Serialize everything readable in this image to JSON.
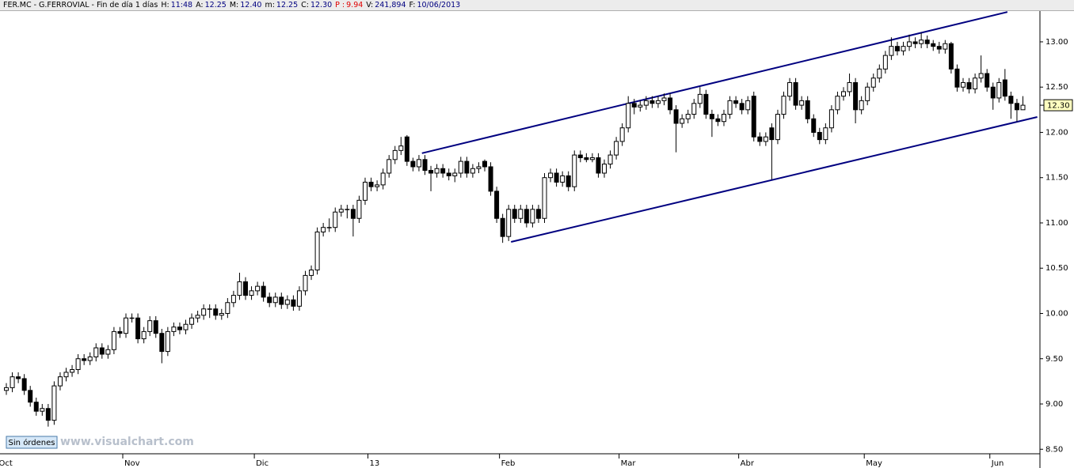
{
  "chart_data": {
    "type": "candlestick",
    "header": {
      "symbol": "FER.MC - G.FERROVIAL - Fin de día 1 días",
      "fields": [
        {
          "label": "H:",
          "value": "11:48",
          "color": "#000080"
        },
        {
          "label": "A:",
          "value": "12.25",
          "color": "#000080"
        },
        {
          "label": "M:",
          "value": "12.40",
          "color": "#000080"
        },
        {
          "label": "m:",
          "value": "12.25",
          "color": "#000080"
        },
        {
          "label": "C:",
          "value": "12.30",
          "color": "#000080"
        },
        {
          "label": "P :",
          "value": "9.94",
          "color": "#e00000"
        },
        {
          "label": "V:",
          "value": "241,894",
          "color": "#000080"
        },
        {
          "label": "F:",
          "value": "10/06/2013",
          "color": "#000080"
        }
      ]
    },
    "button": "Sin órdenes",
    "watermark": "www.visualchart.com",
    "last_label": "12.30",
    "ylim": [
      8.45,
      13.34
    ],
    "yticks": [
      {
        "value": 8.5,
        "label": "8.50"
      },
      {
        "value": 9,
        "label": "9.00"
      },
      {
        "value": 9.5,
        "label": "9.50"
      },
      {
        "value": 10,
        "label": "10.00"
      },
      {
        "value": 10.5,
        "label": "10.50"
      },
      {
        "value": 11,
        "label": "11.00"
      },
      {
        "value": 11.5,
        "label": "11.50"
      },
      {
        "value": 12,
        "label": "12.00"
      },
      {
        "value": 12.5,
        "label": "12.50"
      },
      {
        "value": 13,
        "label": "13.00"
      }
    ],
    "xlabels": [
      {
        "label": "Oct",
        "index": -1
      },
      {
        "label": "Nov",
        "index": 20
      },
      {
        "label": "Dic",
        "index": 42
      },
      {
        "label": "13",
        "index": 61
      },
      {
        "label": "Feb",
        "index": 83
      },
      {
        "label": "Mar",
        "index": 103
      },
      {
        "label": "Abr",
        "index": 123
      },
      {
        "label": "May",
        "index": 144
      },
      {
        "label": "Jun",
        "index": 165
      }
    ],
    "up_color": "#ffffff",
    "down_color": "#000000",
    "trend_color": "#000080",
    "trendlines": [
      {
        "x": [
          69.5,
          167.4
        ],
        "y": [
          11.77,
          13.33
        ]
      },
      {
        "x": [
          84.4,
          172.4
        ],
        "y": [
          10.79,
          12.17
        ]
      }
    ],
    "candles": [
      [
        9.15,
        9.23,
        9.1,
        9.18
      ],
      [
        9.18,
        9.35,
        9.13,
        9.3
      ],
      [
        9.3,
        9.35,
        9.23,
        9.28
      ],
      [
        9.28,
        9.33,
        9.1,
        9.15
      ],
      [
        9.15,
        9.2,
        8.97,
        9.02
      ],
      [
        9.02,
        9.07,
        8.87,
        8.92
      ],
      [
        8.92,
        9.0,
        8.87,
        8.95
      ],
      [
        8.95,
        9.0,
        8.75,
        8.82
      ],
      [
        8.82,
        9.25,
        8.77,
        9.2
      ],
      [
        9.2,
        9.35,
        9.15,
        9.3
      ],
      [
        9.3,
        9.4,
        9.25,
        9.35
      ],
      [
        9.35,
        9.43,
        9.3,
        9.38
      ],
      [
        9.38,
        9.55,
        9.33,
        9.5
      ],
      [
        9.5,
        9.55,
        9.43,
        9.48
      ],
      [
        9.48,
        9.57,
        9.43,
        9.52
      ],
      [
        9.52,
        9.67,
        9.47,
        9.62
      ],
      [
        9.62,
        9.67,
        9.5,
        9.55
      ],
      [
        9.55,
        9.65,
        9.5,
        9.6
      ],
      [
        9.6,
        9.85,
        9.55,
        9.8
      ],
      [
        9.8,
        9.85,
        9.73,
        9.78
      ],
      [
        9.78,
        10.0,
        9.73,
        9.95
      ],
      [
        9.95,
        10.0,
        9.9,
        9.95
      ],
      [
        9.95,
        10.0,
        9.67,
        9.72
      ],
      [
        9.72,
        9.85,
        9.67,
        9.8
      ],
      [
        9.8,
        9.97,
        9.75,
        9.92
      ],
      [
        9.92,
        9.97,
        9.73,
        9.78
      ],
      [
        9.78,
        9.83,
        9.45,
        9.58
      ],
      [
        9.58,
        9.85,
        9.53,
        9.8
      ],
      [
        9.8,
        9.9,
        9.75,
        9.85
      ],
      [
        9.85,
        9.9,
        9.77,
        9.82
      ],
      [
        9.82,
        9.93,
        9.77,
        9.88
      ],
      [
        9.88,
        10.0,
        9.83,
        9.95
      ],
      [
        9.95,
        10.03,
        9.9,
        9.98
      ],
      [
        9.98,
        10.1,
        9.93,
        10.05
      ],
      [
        10.05,
        10.1,
        9.95,
        10.05
      ],
      [
        10.05,
        10.1,
        9.93,
        9.98
      ],
      [
        9.98,
        10.05,
        9.93,
        10.0
      ],
      [
        10.0,
        10.17,
        9.95,
        10.12
      ],
      [
        10.12,
        10.25,
        10.07,
        10.2
      ],
      [
        10.2,
        10.45,
        10.15,
        10.35
      ],
      [
        10.35,
        10.4,
        10.15,
        10.2
      ],
      [
        10.2,
        10.3,
        10.15,
        10.25
      ],
      [
        10.25,
        10.35,
        10.2,
        10.3
      ],
      [
        10.3,
        10.35,
        10.13,
        10.18
      ],
      [
        10.18,
        10.23,
        10.07,
        10.12
      ],
      [
        10.12,
        10.23,
        10.07,
        10.18
      ],
      [
        10.18,
        10.23,
        10.05,
        10.1
      ],
      [
        10.1,
        10.2,
        10.05,
        10.15
      ],
      [
        10.15,
        10.2,
        10.03,
        10.08
      ],
      [
        10.08,
        10.3,
        10.03,
        10.25
      ],
      [
        10.25,
        10.47,
        10.2,
        10.42
      ],
      [
        10.42,
        10.53,
        10.37,
        10.48
      ],
      [
        10.48,
        10.95,
        10.43,
        10.9
      ],
      [
        10.9,
        11.0,
        10.85,
        10.95
      ],
      [
        10.95,
        11.05,
        10.9,
        10.95
      ],
      [
        10.95,
        11.17,
        10.9,
        11.12
      ],
      [
        11.12,
        11.2,
        11.07,
        11.15
      ],
      [
        11.15,
        11.2,
        11.05,
        11.15
      ],
      [
        11.15,
        11.2,
        10.85,
        11.05
      ],
      [
        11.05,
        11.3,
        11.0,
        11.25
      ],
      [
        11.25,
        11.5,
        11.2,
        11.45
      ],
      [
        11.45,
        11.5,
        11.35,
        11.4
      ],
      [
        11.4,
        11.47,
        11.35,
        11.42
      ],
      [
        11.42,
        11.6,
        11.37,
        11.55
      ],
      [
        11.55,
        11.75,
        11.5,
        11.7
      ],
      [
        11.7,
        11.85,
        11.65,
        11.8
      ],
      [
        11.8,
        11.95,
        11.75,
        11.85
      ],
      [
        11.95,
        11.97,
        11.63,
        11.68
      ],
      [
        11.68,
        11.72,
        11.57,
        11.62
      ],
      [
        11.62,
        11.75,
        11.57,
        11.7
      ],
      [
        11.7,
        11.75,
        11.53,
        11.58
      ],
      [
        11.58,
        11.63,
        11.35,
        11.55
      ],
      [
        11.55,
        11.65,
        11.5,
        11.6
      ],
      [
        11.6,
        11.65,
        11.5,
        11.55
      ],
      [
        11.55,
        11.6,
        11.47,
        11.52
      ],
      [
        11.52,
        11.6,
        11.45,
        11.55
      ],
      [
        11.55,
        11.73,
        11.5,
        11.68
      ],
      [
        11.68,
        11.73,
        11.5,
        11.55
      ],
      [
        11.55,
        11.65,
        11.5,
        11.6
      ],
      [
        11.6,
        11.67,
        11.55,
        11.62
      ],
      [
        11.68,
        11.7,
        11.57,
        11.62
      ],
      [
        11.62,
        11.67,
        11.3,
        11.35
      ],
      [
        11.35,
        11.4,
        11.0,
        11.05
      ],
      [
        11.05,
        11.1,
        10.78,
        10.85
      ],
      [
        10.85,
        11.2,
        10.8,
        11.15
      ],
      [
        11.15,
        11.2,
        11.0,
        11.05
      ],
      [
        11.05,
        11.2,
        11.0,
        11.15
      ],
      [
        11.15,
        11.2,
        10.95,
        11.0
      ],
      [
        11.0,
        11.2,
        10.95,
        11.15
      ],
      [
        11.15,
        11.2,
        11.0,
        11.05
      ],
      [
        11.05,
        11.55,
        11.0,
        11.5
      ],
      [
        11.5,
        11.6,
        11.45,
        11.55
      ],
      [
        11.55,
        11.6,
        11.4,
        11.45
      ],
      [
        11.45,
        11.57,
        11.4,
        11.52
      ],
      [
        11.52,
        11.57,
        11.35,
        11.4
      ],
      [
        11.4,
        11.8,
        11.35,
        11.75
      ],
      [
        11.75,
        11.8,
        11.67,
        11.72
      ],
      [
        11.72,
        11.77,
        11.67,
        11.7
      ],
      [
        11.7,
        11.77,
        11.67,
        11.72
      ],
      [
        11.72,
        11.77,
        11.5,
        11.55
      ],
      [
        11.55,
        11.7,
        11.5,
        11.65
      ],
      [
        11.65,
        11.8,
        11.6,
        11.75
      ],
      [
        11.75,
        11.95,
        11.7,
        11.9
      ],
      [
        11.9,
        12.1,
        11.85,
        12.05
      ],
      [
        12.05,
        12.4,
        12.0,
        12.32
      ],
      [
        12.32,
        12.37,
        12.2,
        12.28
      ],
      [
        12.28,
        12.35,
        12.23,
        12.3
      ],
      [
        12.3,
        12.4,
        12.25,
        12.35
      ],
      [
        12.35,
        12.4,
        12.27,
        12.32
      ],
      [
        12.32,
        12.4,
        12.27,
        12.35
      ],
      [
        12.35,
        12.43,
        12.3,
        12.38
      ],
      [
        12.38,
        12.43,
        12.2,
        12.25
      ],
      [
        12.25,
        12.3,
        11.78,
        12.1
      ],
      [
        12.1,
        12.2,
        12.05,
        12.15
      ],
      [
        12.15,
        12.25,
        12.1,
        12.2
      ],
      [
        12.2,
        12.37,
        12.15,
        12.32
      ],
      [
        12.32,
        12.5,
        12.27,
        12.42
      ],
      [
        12.42,
        12.47,
        12.15,
        12.2
      ],
      [
        12.2,
        12.25,
        11.95,
        12.15
      ],
      [
        12.15,
        12.2,
        12.07,
        12.12
      ],
      [
        12.12,
        12.25,
        12.07,
        12.2
      ],
      [
        12.2,
        12.4,
        12.15,
        12.35
      ],
      [
        12.35,
        12.4,
        12.27,
        12.32
      ],
      [
        12.32,
        12.37,
        12.2,
        12.25
      ],
      [
        12.25,
        12.4,
        12.2,
        12.35
      ],
      [
        12.4,
        12.45,
        11.9,
        11.95
      ],
      [
        11.95,
        12.0,
        11.85,
        11.9
      ],
      [
        11.9,
        12.0,
        11.85,
        11.95
      ],
      [
        12.05,
        12.1,
        11.48,
        11.92
      ],
      [
        11.92,
        12.25,
        11.87,
        12.2
      ],
      [
        12.2,
        12.45,
        12.15,
        12.4
      ],
      [
        12.4,
        12.6,
        12.35,
        12.55
      ],
      [
        12.55,
        12.6,
        12.25,
        12.3
      ],
      [
        12.3,
        12.4,
        12.25,
        12.35
      ],
      [
        12.35,
        12.4,
        12.1,
        12.15
      ],
      [
        12.15,
        12.2,
        11.95,
        12.0
      ],
      [
        12.0,
        12.05,
        11.87,
        11.92
      ],
      [
        11.92,
        12.1,
        11.87,
        12.05
      ],
      [
        12.05,
        12.3,
        12.0,
        12.25
      ],
      [
        12.25,
        12.45,
        12.2,
        12.4
      ],
      [
        12.4,
        12.5,
        12.35,
        12.45
      ],
      [
        12.45,
        12.65,
        12.4,
        12.55
      ],
      [
        12.55,
        12.6,
        12.1,
        12.25
      ],
      [
        12.25,
        12.4,
        12.2,
        12.35
      ],
      [
        12.35,
        12.55,
        12.3,
        12.5
      ],
      [
        12.5,
        12.65,
        12.45,
        12.6
      ],
      [
        12.6,
        12.75,
        12.55,
        12.7
      ],
      [
        12.7,
        12.9,
        12.65,
        12.85
      ],
      [
        12.85,
        13.05,
        12.8,
        12.95
      ],
      [
        12.95,
        13.0,
        12.85,
        12.9
      ],
      [
        12.9,
        13.0,
        12.85,
        12.95
      ],
      [
        12.95,
        13.08,
        12.9,
        13.0
      ],
      [
        13.0,
        13.05,
        12.93,
        12.98
      ],
      [
        12.98,
        13.1,
        12.93,
        13.02
      ],
      [
        13.02,
        13.07,
        12.93,
        12.98
      ],
      [
        12.98,
        13.02,
        12.9,
        12.95
      ],
      [
        12.95,
        13.0,
        12.87,
        12.92
      ],
      [
        12.92,
        13.02,
        12.87,
        12.98
      ],
      [
        12.98,
        13.0,
        12.65,
        12.7
      ],
      [
        12.7,
        12.75,
        12.45,
        12.5
      ],
      [
        12.5,
        12.6,
        12.45,
        12.55
      ],
      [
        12.55,
        12.6,
        12.43,
        12.48
      ],
      [
        12.48,
        12.65,
        12.43,
        12.6
      ],
      [
        12.6,
        12.85,
        12.55,
        12.65
      ],
      [
        12.65,
        12.7,
        12.45,
        12.5
      ],
      [
        12.5,
        12.55,
        12.25,
        12.38
      ],
      [
        12.38,
        12.6,
        12.33,
        12.55
      ],
      [
        12.58,
        12.7,
        12.35,
        12.4
      ],
      [
        12.4,
        12.45,
        12.15,
        12.32
      ],
      [
        12.32,
        12.37,
        12.12,
        12.25
      ],
      [
        12.25,
        12.4,
        12.25,
        12.3
      ]
    ]
  }
}
